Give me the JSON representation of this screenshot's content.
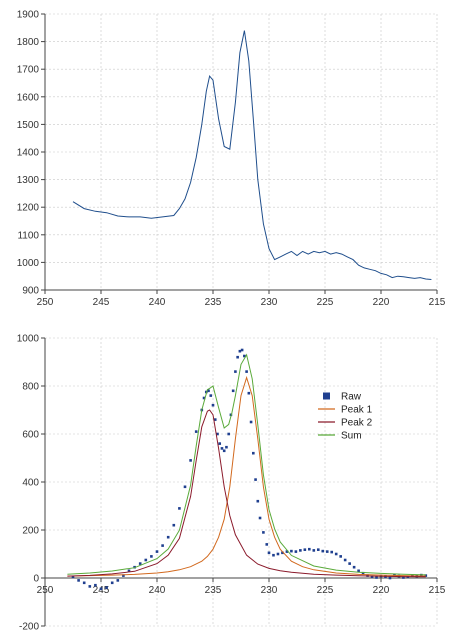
{
  "chart_data": [
    {
      "type": "line",
      "title": "",
      "xlabel": "",
      "ylabel": "",
      "xlim": [
        250,
        215
      ],
      "ylim": [
        900,
        1900
      ],
      "xticks": [
        250,
        245,
        240,
        235,
        230,
        225,
        220,
        215
      ],
      "yticks": [
        900,
        1000,
        1100,
        1200,
        1300,
        1400,
        1500,
        1600,
        1700,
        1800,
        1900
      ],
      "grid": true,
      "series": [
        {
          "color": "#1f4e8c",
          "x": [
            247.5,
            246.5,
            245.5,
            244.5,
            243.5,
            242.5,
            241.5,
            240.5,
            239.5,
            238.5,
            238.0,
            237.5,
            237.0,
            236.5,
            236.0,
            235.6,
            235.3,
            235.0,
            234.5,
            234.0,
            233.5,
            233.0,
            232.6,
            232.2,
            231.8,
            231.4,
            231.0,
            230.5,
            230.0,
            229.5,
            229.0,
            228.5,
            228.0,
            227.5,
            227.0,
            226.5,
            226.0,
            225.5,
            225.0,
            224.5,
            224.0,
            223.5,
            223.0,
            222.5,
            222.0,
            221.5,
            221.0,
            220.5,
            220.0,
            219.5,
            219.0,
            218.5,
            218.0,
            217.5,
            217.0,
            216.5,
            216.0,
            215.5
          ],
          "y": [
            1220,
            1195,
            1185,
            1180,
            1168,
            1165,
            1165,
            1160,
            1165,
            1170,
            1195,
            1230,
            1290,
            1380,
            1500,
            1620,
            1675,
            1660,
            1520,
            1420,
            1410,
            1580,
            1760,
            1840,
            1730,
            1520,
            1300,
            1140,
            1050,
            1010,
            1020,
            1030,
            1040,
            1025,
            1040,
            1030,
            1040,
            1035,
            1040,
            1030,
            1035,
            1030,
            1020,
            1010,
            990,
            980,
            975,
            970,
            960,
            955,
            945,
            950,
            948,
            945,
            942,
            945,
            940,
            938
          ]
        }
      ]
    },
    {
      "type": "scatter",
      "title": "",
      "xlabel": "",
      "ylabel": "",
      "xlim": [
        250,
        215
      ],
      "ylim": [
        -200,
        1000
      ],
      "xticks": [
        250,
        245,
        240,
        235,
        230,
        225,
        220,
        215
      ],
      "yticks": [
        -200,
        0,
        200,
        400,
        600,
        800,
        1000
      ],
      "grid": true,
      "legend_position": "right",
      "series": [
        {
          "name": "Raw",
          "kind": "points",
          "color": "#1f3f8f",
          "x": [
            247.5,
            247.0,
            246.5,
            246.0,
            245.5,
            245.0,
            244.5,
            244.0,
            243.5,
            243.0,
            242.5,
            242.0,
            241.5,
            241.0,
            240.5,
            240.0,
            239.5,
            239.0,
            238.5,
            238.0,
            237.5,
            237.0,
            236.5,
            236.0,
            235.8,
            235.6,
            235.4,
            235.2,
            235.0,
            234.8,
            234.6,
            234.4,
            234.2,
            234.0,
            233.8,
            233.6,
            233.4,
            233.2,
            233.0,
            232.8,
            232.6,
            232.4,
            232.2,
            232.0,
            231.8,
            231.6,
            231.4,
            231.2,
            231.0,
            230.8,
            230.5,
            230.2,
            230.0,
            229.6,
            229.2,
            228.8,
            228.4,
            228.0,
            227.6,
            227.2,
            226.8,
            226.4,
            226.0,
            225.6,
            225.2,
            224.8,
            224.4,
            224.0,
            223.6,
            223.2,
            222.8,
            222.4,
            222.0,
            221.6,
            221.2,
            220.8,
            220.4,
            220.0,
            219.6,
            219.2,
            218.8,
            218.4,
            218.0,
            217.6,
            217.2,
            216.8,
            216.4,
            216.0
          ],
          "y": [
            5,
            -10,
            -20,
            -35,
            -30,
            -45,
            -40,
            -20,
            -10,
            10,
            30,
            45,
            60,
            75,
            90,
            110,
            135,
            170,
            220,
            290,
            380,
            490,
            610,
            700,
            750,
            775,
            780,
            760,
            720,
            660,
            600,
            560,
            540,
            530,
            545,
            600,
            680,
            780,
            860,
            920,
            945,
            950,
            925,
            860,
            770,
            650,
            520,
            410,
            320,
            250,
            190,
            140,
            105,
            95,
            100,
            105,
            110,
            112,
            110,
            115,
            118,
            120,
            115,
            118,
            112,
            110,
            108,
            100,
            90,
            75,
            60,
            45,
            30,
            20,
            10,
            5,
            2,
            8,
            5,
            0,
            12,
            8,
            2,
            5,
            10,
            8,
            12,
            10
          ]
        },
        {
          "name": "Peak 1",
          "kind": "line",
          "color": "#d2691e",
          "x": [
            248,
            246,
            244,
            242,
            240,
            239,
            238,
            237,
            236,
            235.5,
            235,
            234.5,
            234,
            233.5,
            233,
            232.5,
            232,
            231.5,
            231,
            230.5,
            230,
            229.5,
            229,
            228,
            227,
            226,
            224,
            222,
            220,
            218,
            216
          ],
          "y": [
            8,
            10,
            12,
            15,
            21,
            26,
            34,
            47,
            70,
            90,
            120,
            170,
            245,
            380,
            580,
            760,
            835,
            760,
            580,
            380,
            245,
            170,
            120,
            70,
            47,
            34,
            21,
            15,
            12,
            10,
            8
          ]
        },
        {
          "name": "Peak 2",
          "kind": "line",
          "color": "#8b1a2b",
          "x": [
            248,
            246,
            244,
            242,
            240,
            239,
            238,
            237,
            236.5,
            236,
            235.5,
            235.3,
            235,
            234.5,
            234,
            233.5,
            233,
            232,
            231,
            230,
            229,
            228,
            226,
            224,
            222,
            220,
            218,
            216
          ],
          "y": [
            8,
            11,
            17,
            28,
            60,
            95,
            165,
            340,
            490,
            630,
            695,
            700,
            680,
            540,
            380,
            260,
            180,
            95,
            58,
            40,
            30,
            24,
            16,
            12,
            9,
            7,
            6,
            5
          ]
        },
        {
          "name": "Sum",
          "kind": "line",
          "color": "#5aaa3a",
          "x": [
            248,
            246,
            244,
            242,
            240,
            239,
            238,
            237,
            236.5,
            236,
            235.5,
            235.3,
            235,
            234.5,
            234,
            233.6,
            233.3,
            233,
            232.5,
            232,
            231.5,
            231,
            230.5,
            230,
            229.5,
            229,
            228,
            226,
            224,
            222,
            220,
            218,
            216
          ],
          "y": [
            16,
            21,
            29,
            43,
            81,
            121,
            199,
            387,
            550,
            700,
            785,
            790,
            800,
            710,
            625,
            640,
            690,
            760,
            890,
            930,
            830,
            638,
            430,
            285,
            205,
            150,
            94,
            50,
            33,
            24,
            19,
            16,
            13
          ]
        }
      ]
    }
  ]
}
